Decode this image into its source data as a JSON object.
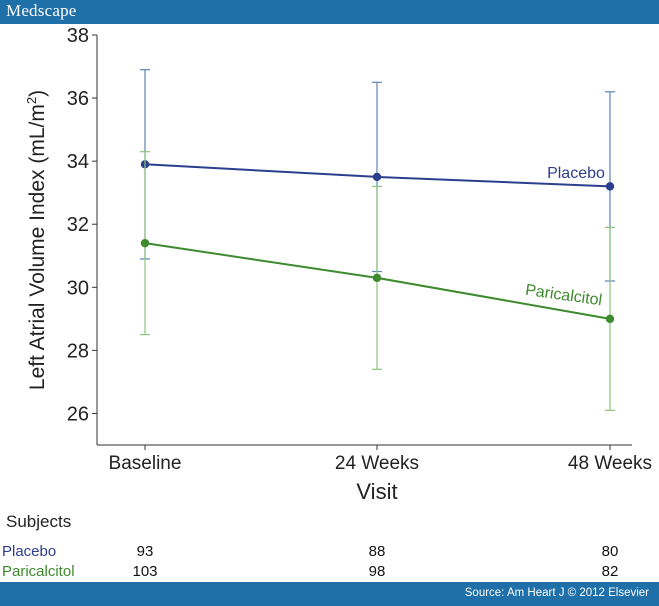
{
  "header": {
    "brand": "Medscape"
  },
  "footer": {
    "source": "Source: Am Heart J © 2012 Elsevier"
  },
  "chart_data": {
    "type": "line",
    "title": "",
    "xlabel": "Visit",
    "ylabel_main": "Left Atrial Volume Index (mL/m",
    "ylabel_sup": "2",
    "ylabel_close": ")",
    "categories": [
      "Baseline",
      "24 Weeks",
      "48 Weeks"
    ],
    "ylim": [
      25,
      38
    ],
    "yticks": [
      26,
      28,
      30,
      32,
      34,
      36,
      38
    ],
    "grid": false,
    "series": [
      {
        "name": "Placebo",
        "color": "#2c3f8f",
        "errColor": "#5a86b8",
        "values": [
          33.9,
          33.5,
          33.2
        ],
        "lower": [
          30.9,
          30.5,
          30.2
        ],
        "upper": [
          36.9,
          36.5,
          36.2
        ]
      },
      {
        "name": "Paricalcitol",
        "color": "#3e8a2e",
        "errColor": "#8cc67a",
        "values": [
          31.4,
          30.3,
          29.0
        ],
        "lower": [
          28.5,
          27.4,
          26.1
        ],
        "upper": [
          34.3,
          33.2,
          31.9
        ]
      }
    ]
  },
  "subjects": {
    "heading": "Subjects",
    "rows": [
      {
        "label": "Placebo",
        "color": "#2c3f8f",
        "counts": [
          "93",
          "88",
          "80"
        ]
      },
      {
        "label": "Paricalcitol",
        "color": "#3e8a2e",
        "counts": [
          "103",
          "98",
          "82"
        ]
      }
    ]
  }
}
